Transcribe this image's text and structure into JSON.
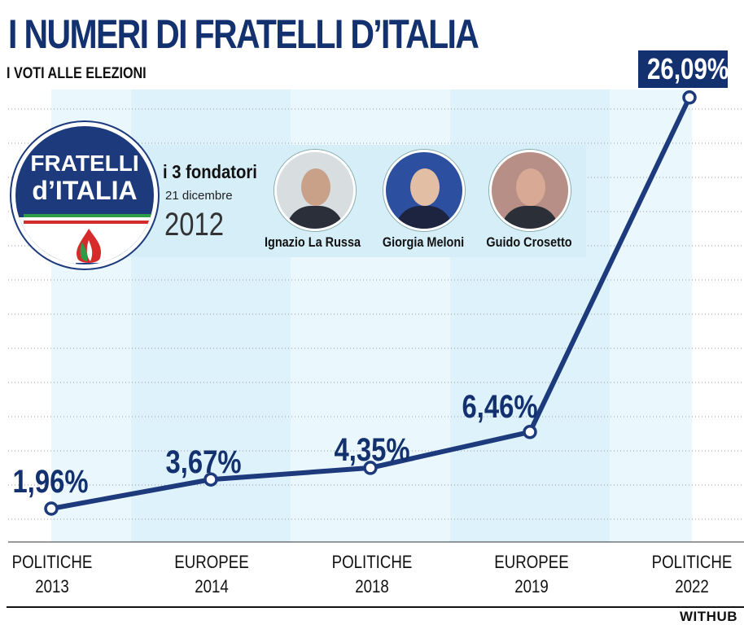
{
  "title": "I NUMERI DI FRATELLI D’ITALIA",
  "subtitle": "I VOTI ALLE ELEZIONI",
  "logo": {
    "line1": "FRATELLI",
    "line2": "d’ITALIA"
  },
  "founders": {
    "label": "i 3 fondatori",
    "date": "21 dicembre",
    "year": "2012",
    "people": [
      "Ignazio La Russa",
      "Giorgia Meloni",
      "Guido Crosetto"
    ]
  },
  "chart_data": {
    "type": "line",
    "title": "I NUMERI DI FRATELLI D’ITALIA",
    "subtitle": "I VOTI ALLE ELEZIONI",
    "categories": [
      "POLITICHE 2013",
      "EUROPEE 2014",
      "POLITICHE 2018",
      "EUROPEE 2019",
      "POLITICHE 2022"
    ],
    "x_labels": [
      {
        "line1": "POLITICHE",
        "line2": "2013"
      },
      {
        "line1": "EUROPEE",
        "line2": "2014"
      },
      {
        "line1": "POLITICHE",
        "line2": "2018"
      },
      {
        "line1": "EUROPEE",
        "line2": "2019"
      },
      {
        "line1": "POLITICHE",
        "line2": "2022"
      }
    ],
    "values": [
      1.96,
      3.67,
      4.35,
      6.46,
      26.09
    ],
    "value_labels": [
      "1,96%",
      "3,67%",
      "4,35%",
      "6,46%",
      "26,09%"
    ],
    "ylim": [
      0,
      30
    ],
    "unit": "%",
    "grid": true
  },
  "source": "WITHUB",
  "colors": {
    "navy": "#13316e",
    "line": "#1d3a7d",
    "band": "#dff3fb",
    "grid": "#9a9a9a"
  }
}
